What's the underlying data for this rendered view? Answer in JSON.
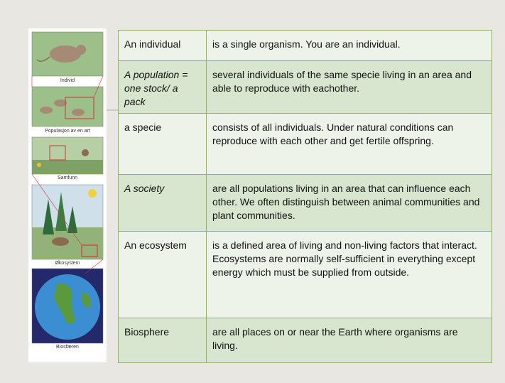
{
  "images": [
    {
      "caption": "Individ"
    },
    {
      "caption": "Populasjon av en art"
    },
    {
      "caption": "Samfunn"
    },
    {
      "caption": "Økosystem"
    },
    {
      "caption": "Biosfæren"
    }
  ],
  "table": {
    "rows": [
      [
        "An individual",
        "is a single organism. You are an individual."
      ],
      [
        "A population = one stock/ a pack",
        "several individuals of the same specie living in an area and able to reproduce with eachother."
      ],
      [
        "a specie",
        "consists of all individuals. Under natural conditions can reproduce with each other and get fertile offspring."
      ],
      [
        "A society",
        "are all populations living in an area that can influence each other. We often distinguish between animal communities and plant communities."
      ],
      [
        "An ecosystem",
        "is a defined area of living and non-living factors that interact. Ecosystems are normally self-sufficient in everything except energy which must be supplied from outside."
      ],
      [
        "Biosphere",
        "are all places on or near the Earth where organisms are living."
      ]
    ]
  }
}
